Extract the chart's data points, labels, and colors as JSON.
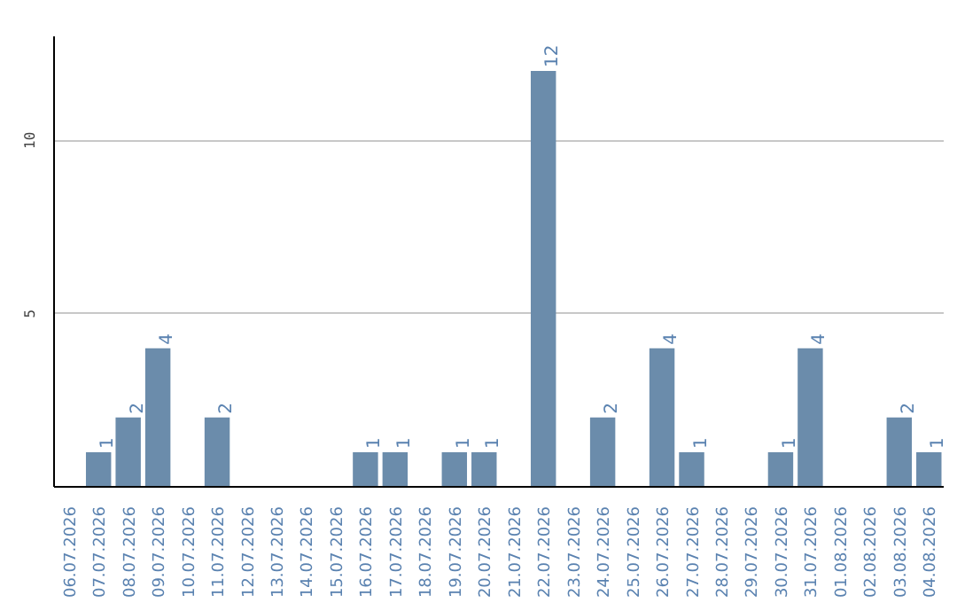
{
  "chart_data": {
    "type": "bar",
    "categories": [
      "06.07.2026",
      "07.07.2026",
      "08.07.2026",
      "09.07.2026",
      "10.07.2026",
      "11.07.2026",
      "12.07.2026",
      "13.07.2026",
      "14.07.2026",
      "15.07.2026",
      "16.07.2026",
      "17.07.2026",
      "18.07.2026",
      "19.07.2026",
      "20.07.2026",
      "21.07.2026",
      "22.07.2026",
      "23.07.2026",
      "24.07.2026",
      "25.07.2026",
      "26.07.2026",
      "27.07.2026",
      "28.07.2026",
      "29.07.2026",
      "30.07.2026",
      "31.07.2026",
      "01.08.2026",
      "02.08.2026",
      "03.08.2026",
      "04.08.2026"
    ],
    "values": [
      0,
      1,
      2,
      4,
      0,
      2,
      0,
      0,
      0,
      0,
      1,
      1,
      0,
      1,
      1,
      0,
      12,
      0,
      2,
      0,
      4,
      1,
      0,
      0,
      1,
      4,
      0,
      0,
      2,
      1
    ],
    "value_labels": [
      null,
      "1",
      "2",
      "4",
      null,
      "2",
      null,
      null,
      null,
      null,
      "1",
      "1",
      null,
      "1",
      "1",
      null,
      "12",
      null,
      "2",
      null,
      "4",
      "1",
      null,
      null,
      "1",
      "4",
      null,
      null,
      "2",
      "1"
    ],
    "color": "#6b8cab",
    "ylim": [
      0,
      13
    ],
    "yticks": [
      5,
      10
    ],
    "grid": "y"
  }
}
